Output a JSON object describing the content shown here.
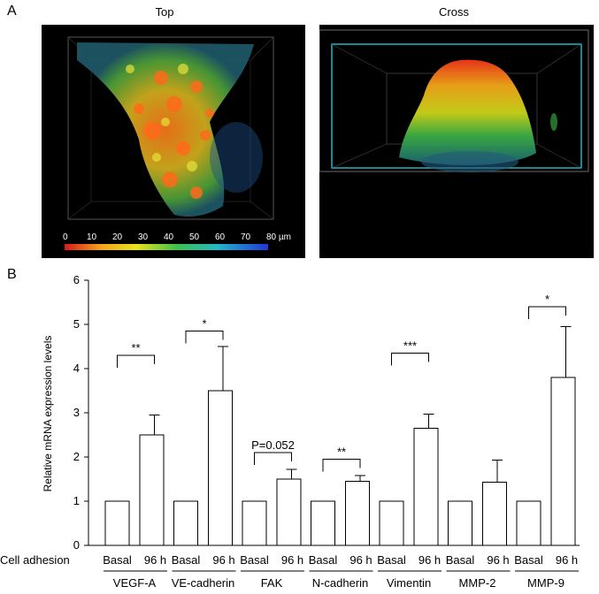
{
  "panel_a": {
    "letter": "A",
    "left_title": "Top",
    "right_title": "Cross",
    "scale_labels": [
      "0",
      "10",
      "20",
      "30",
      "40",
      "50",
      "60",
      "70",
      "80 µm"
    ]
  },
  "panel_b": {
    "letter": "B"
  },
  "chart_data": {
    "type": "bar",
    "ylabel": "Relative mRNA expression levels",
    "ylim": [
      0,
      6
    ],
    "yticks": [
      "0",
      "1",
      "2",
      "3",
      "4",
      "5",
      "6"
    ],
    "row_label": "Cell adhesion",
    "condition_labels": [
      "Basal",
      "96 h"
    ],
    "categories": [
      "VEGF-A",
      "VE-cadherin",
      "FAK",
      "N-cadherin",
      "Vimentin",
      "MMP-2",
      "MMP-9"
    ],
    "series": [
      {
        "name": "Basal",
        "values": [
          1,
          1,
          1,
          1,
          1,
          1,
          1
        ]
      },
      {
        "name": "96 h",
        "values": [
          2.5,
          3.5,
          1.5,
          1.45,
          2.65,
          1.43,
          3.8
        ],
        "error": [
          0.45,
          1.0,
          0.22,
          0.13,
          0.32,
          0.5,
          1.15
        ]
      }
    ],
    "significance": [
      "**",
      "*",
      "P=0.052",
      "**",
      "***",
      "",
      "*"
    ],
    "bracket_heights": [
      4.3,
      4.85,
      2.1,
      1.95,
      4.35,
      null,
      5.4
    ]
  }
}
